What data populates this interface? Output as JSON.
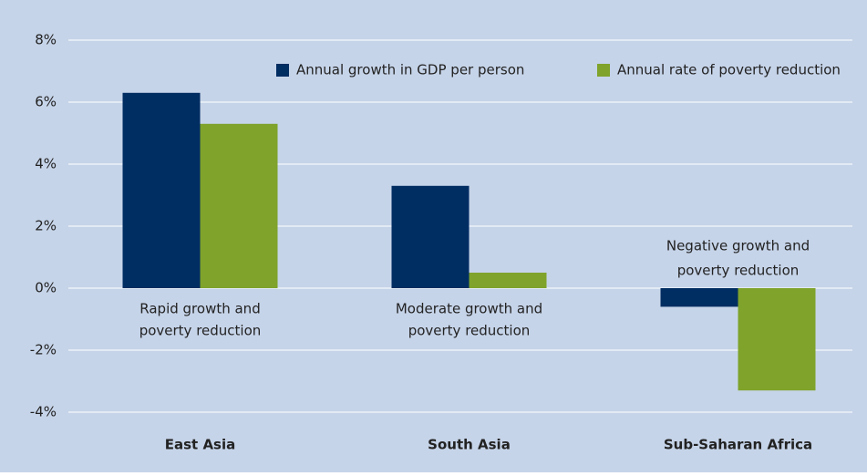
{
  "chart_data": {
    "type": "bar",
    "categories": [
      "East Asia",
      "South Asia",
      "Sub-Saharan Africa"
    ],
    "series": [
      {
        "name": "Annual growth in GDP per person",
        "color": "#002d62",
        "values": [
          6.3,
          3.3,
          -0.6
        ]
      },
      {
        "name": "Annual rate of poverty reduction",
        "color": "#7fa32b",
        "values": [
          5.3,
          0.5,
          -3.3
        ]
      }
    ],
    "annotations": [
      [
        "Rapid growth and",
        "poverty reduction"
      ],
      [
        "Moderate growth and",
        "poverty reduction"
      ],
      [
        "Negative growth and",
        "poverty reduction"
      ]
    ],
    "ylim": [
      -4,
      8
    ],
    "yticks": [
      {
        "value": -4,
        "label": "-4%"
      },
      {
        "value": -2,
        "label": "-2%"
      },
      {
        "value": 0,
        "label": "0%"
      },
      {
        "value": 2,
        "label": "2%"
      },
      {
        "value": 4,
        "label": "4%"
      },
      {
        "value": 6,
        "label": "6%"
      },
      {
        "value": 8,
        "label": "8%"
      }
    ],
    "grid": true
  }
}
